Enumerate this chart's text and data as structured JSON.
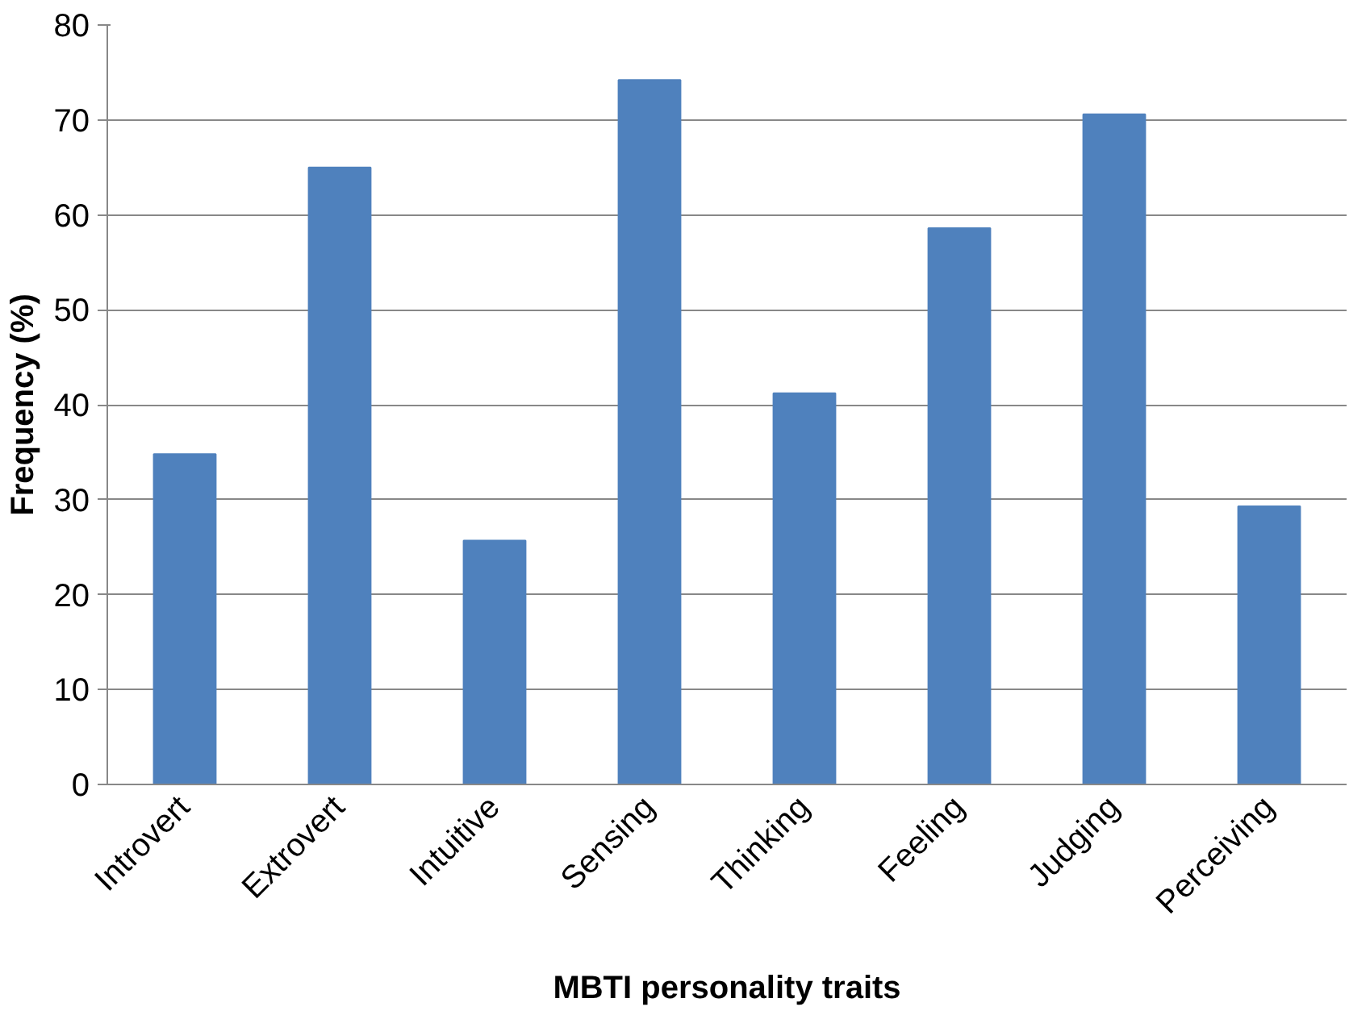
{
  "chart_data": {
    "type": "bar",
    "xlabel": "MBTI personality traits",
    "ylabel": "Frequency (%)",
    "categories": [
      "Introvert",
      "Extrovert",
      "Intuitive",
      "Sensing",
      "Thinking",
      "Feeling",
      "Judging",
      "Perceiving"
    ],
    "values": [
      34.8,
      65.0,
      25.7,
      74.2,
      41.2,
      58.6,
      70.6,
      29.3
    ],
    "color": "#4f81bd",
    "ylim": [
      0,
      80
    ],
    "yticks": [
      0,
      10,
      20,
      30,
      40,
      50,
      60,
      70,
      80
    ],
    "grid": "y"
  }
}
